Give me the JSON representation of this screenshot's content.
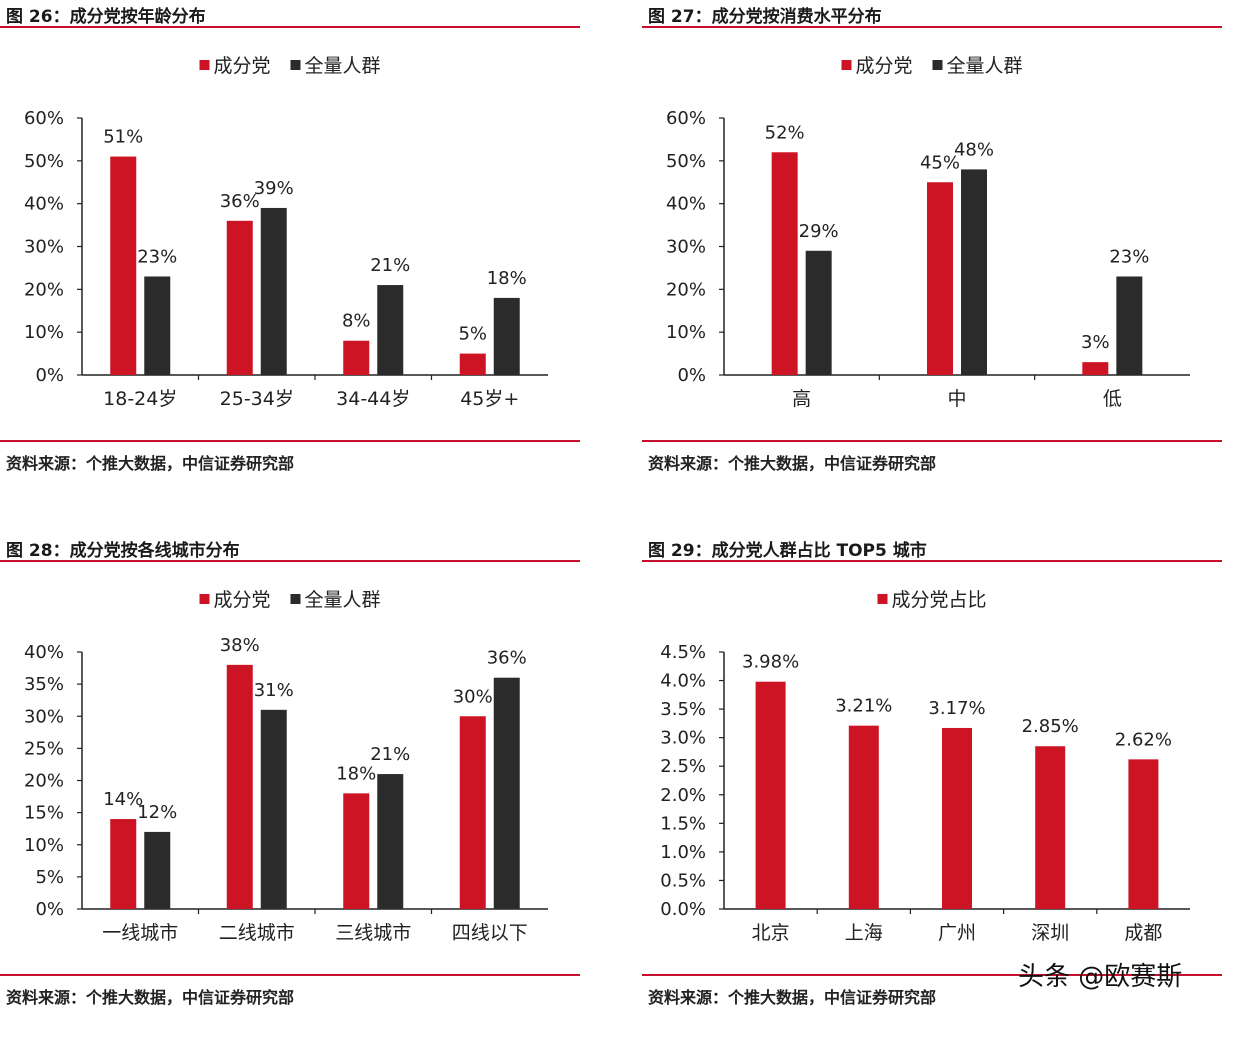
{
  "colors": {
    "red": "#cc1424",
    "dark": "#2b2b2b",
    "rule": "#c8102e"
  },
  "panels": [
    {
      "title": "图 26：成分党按年龄分布",
      "source": "资料来源：个推大数据，中信证券研究部"
    },
    {
      "title": "图 27：成分党按消费水平分布",
      "source": "资料来源：个推大数据，中信证券研究部"
    },
    {
      "title": "图 28：成分党按各线城市分布",
      "source": "资料来源：个推大数据，中信证券研究部"
    },
    {
      "title": "图 29：成分党人群占比 TOP5 城市",
      "source": "资料来源：个推大数据，中信证券研究部"
    }
  ],
  "watermark": "头条 @欧赛斯",
  "chart_data": [
    {
      "type": "bar",
      "categories": [
        "18-24岁",
        "25-34岁",
        "34-44岁",
        "45岁+"
      ],
      "series": [
        {
          "name": "成分党",
          "values": [
            51,
            36,
            8,
            5
          ],
          "labels": [
            "51%",
            "36%",
            "8%",
            "5%"
          ]
        },
        {
          "name": "全量人群",
          "values": [
            23,
            39,
            21,
            18
          ],
          "labels": [
            "23%",
            "39%",
            "21%",
            "18%"
          ]
        }
      ],
      "ylim": [
        0,
        60
      ],
      "yticks": [
        "0%",
        "10%",
        "20%",
        "30%",
        "40%",
        "50%",
        "60%"
      ],
      "legend": "top-center",
      "grid": false
    },
    {
      "type": "bar",
      "categories": [
        "高",
        "中",
        "低"
      ],
      "series": [
        {
          "name": "成分党",
          "values": [
            52,
            45,
            3
          ],
          "labels": [
            "52%",
            "45%",
            "3%"
          ]
        },
        {
          "name": "全量人群",
          "values": [
            29,
            48,
            23
          ],
          "labels": [
            "29%",
            "48%",
            "23%"
          ]
        }
      ],
      "ylim": [
        0,
        60
      ],
      "yticks": [
        "0%",
        "10%",
        "20%",
        "30%",
        "40%",
        "50%",
        "60%"
      ],
      "legend": "top-center",
      "grid": false
    },
    {
      "type": "bar",
      "categories": [
        "一线城市",
        "二线城市",
        "三线城市",
        "四线以下"
      ],
      "series": [
        {
          "name": "成分党",
          "values": [
            14,
            38,
            18,
            30
          ],
          "labels": [
            "14%",
            "38%",
            "18%",
            "30%"
          ]
        },
        {
          "name": "全量人群",
          "values": [
            12,
            31,
            21,
            36
          ],
          "labels": [
            "12%",
            "31%",
            "21%",
            "36%"
          ]
        }
      ],
      "ylim": [
        0,
        40
      ],
      "yticks": [
        "0%",
        "5%",
        "10%",
        "15%",
        "20%",
        "25%",
        "30%",
        "35%",
        "40%"
      ],
      "legend": "top-center",
      "grid": false
    },
    {
      "type": "bar",
      "categories": [
        "北京",
        "上海",
        "广州",
        "深圳",
        "成都"
      ],
      "series": [
        {
          "name": "成分党占比",
          "values": [
            3.98,
            3.21,
            3.17,
            2.85,
            2.62
          ],
          "labels": [
            "3.98%",
            "3.21%",
            "3.17%",
            "2.85%",
            "2.62%"
          ]
        }
      ],
      "ylim": [
        0,
        4.5
      ],
      "yticks": [
        "0.0%",
        "0.5%",
        "1.0%",
        "1.5%",
        "2.0%",
        "2.5%",
        "3.0%",
        "3.5%",
        "4.0%",
        "4.5%"
      ],
      "legend": "top-center",
      "grid": false
    }
  ]
}
